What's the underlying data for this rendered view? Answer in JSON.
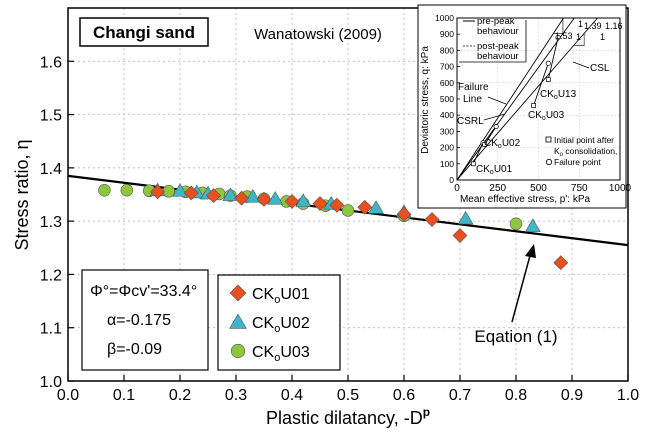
{
  "chart_data": {
    "type": "scatter",
    "main": {
      "xlabel": "Plastic dilatancy, -D",
      "xlabel_sup": "p",
      "ylabel": "Stress ratio, η",
      "xlim": [
        0.0,
        1.0
      ],
      "ylim": [
        1.0,
        1.7
      ],
      "xticks": [
        "0.0",
        "0.1",
        "0.2",
        "0.3",
        "0.4",
        "0.5",
        "0.6",
        "0.7",
        "0.8",
        "0.9",
        "1.0"
      ],
      "yticks": [
        "1.0",
        "1.1",
        "1.2",
        "1.3",
        "1.4",
        "1.5",
        "1.6"
      ],
      "grid": true,
      "material_label": "Changi sand",
      "source_label": "Wanatowski (2009)",
      "parameters": {
        "phi": "Φ°=Φcv'=33.4°",
        "alpha": "α=-0.175",
        "beta": "β=-0.09"
      },
      "annotation": "Eqation (1)",
      "legend_position": "bottom-center",
      "line": {
        "x": [
          0.0,
          1.0
        ],
        "y": [
          1.385,
          1.255
        ]
      },
      "series": [
        {
          "name": "CK0U01",
          "label_main": "CK",
          "label_sub": "o",
          "label_tail": "U01",
          "marker": "diamond",
          "color": "#e8501e",
          "points": [
            [
              0.16,
              1.355
            ],
            [
              0.22,
              1.353
            ],
            [
              0.26,
              1.348
            ],
            [
              0.31,
              1.343
            ],
            [
              0.35,
              1.341
            ],
            [
              0.4,
              1.337
            ],
            [
              0.45,
              1.333
            ],
            [
              0.48,
              1.33
            ],
            [
              0.53,
              1.326
            ],
            [
              0.6,
              1.313
            ],
            [
              0.65,
              1.303
            ],
            [
              0.7,
              1.273
            ],
            [
              0.88,
              1.222
            ]
          ]
        },
        {
          "name": "CK0U02",
          "label_main": "CK",
          "label_sub": "o",
          "label_tail": "U02",
          "marker": "triangle",
          "color": "#3cb6c8",
          "points": [
            [
              0.16,
              1.358
            ],
            [
              0.2,
              1.357
            ],
            [
              0.23,
              1.354
            ],
            [
              0.25,
              1.352
            ],
            [
              0.29,
              1.349
            ],
            [
              0.33,
              1.346
            ],
            [
              0.37,
              1.342
            ],
            [
              0.42,
              1.338
            ],
            [
              0.47,
              1.333
            ],
            [
              0.55,
              1.325
            ],
            [
              0.6,
              1.317
            ],
            [
              0.71,
              1.305
            ],
            [
              0.83,
              1.291
            ]
          ]
        },
        {
          "name": "CK0U03",
          "label_main": "CK",
          "label_sub": "o",
          "label_tail": "U03",
          "marker": "circle",
          "color": "#8dc63f",
          "points": [
            [
              0.065,
              1.358
            ],
            [
              0.105,
              1.358
            ],
            [
              0.145,
              1.357
            ],
            [
              0.18,
              1.356
            ],
            [
              0.21,
              1.355
            ],
            [
              0.24,
              1.353
            ],
            [
              0.27,
              1.351
            ],
            [
              0.29,
              1.348
            ],
            [
              0.32,
              1.346
            ],
            [
              0.35,
              1.342
            ],
            [
              0.39,
              1.337
            ],
            [
              0.42,
              1.333
            ],
            [
              0.46,
              1.329
            ],
            [
              0.5,
              1.32
            ],
            [
              0.6,
              1.31
            ],
            [
              0.8,
              1.295
            ]
          ]
        }
      ]
    },
    "inset": {
      "xlabel": "Mean effective stress, p': kPa",
      "ylabel": "Deviatoric stress, q: kPa",
      "xlim": [
        0,
        1000
      ],
      "ylim": [
        0,
        1000
      ],
      "xticks": [
        "0",
        "250",
        "500",
        "750",
        "1000"
      ],
      "yticks": [
        "0",
        "100",
        "200",
        "300",
        "400",
        "500",
        "600",
        "700",
        "800",
        "900",
        "1000"
      ],
      "legend_line1": [
        "pre-peak",
        "behaviour"
      ],
      "legend_line2": [
        "post-peak",
        "behaviour"
      ],
      "legend_marker1": [
        "Initial point after",
        "K",
        "o",
        " consolidation,"
      ],
      "legend_marker2": "Failure point",
      "labels": {
        "csl": "CSL",
        "failure_line": [
          "Failure",
          "Line"
        ],
        "csrl": "CSRL",
        "u13": [
          "CK",
          "o",
          "U13"
        ],
        "u03": [
          "CK",
          "o",
          "U03"
        ],
        "u02": [
          "CK",
          "o",
          "U02"
        ],
        "u01": [
          "CK",
          "o",
          "U01"
        ]
      },
      "slopes": {
        "s153": "1.53",
        "s139": "1.39",
        "s116": "1.16",
        "one_a": "1",
        "one_b": "1",
        "one_c": "1"
      },
      "paths": [
        {
          "name": "CK0U01",
          "initial": [
            100,
            100
          ],
          "failure": [
            160,
            230
          ]
        },
        {
          "name": "CK0U02",
          "initial": [
            170,
            220
          ],
          "failure": [
            240,
            330
          ]
        },
        {
          "name": "CK0U03",
          "initial": [
            470,
            460
          ],
          "failure": [
            560,
            720
          ]
        },
        {
          "name": "CK0U13",
          "initial": [
            560,
            620
          ],
          "failure": [
            620,
            880
          ]
        }
      ]
    }
  }
}
